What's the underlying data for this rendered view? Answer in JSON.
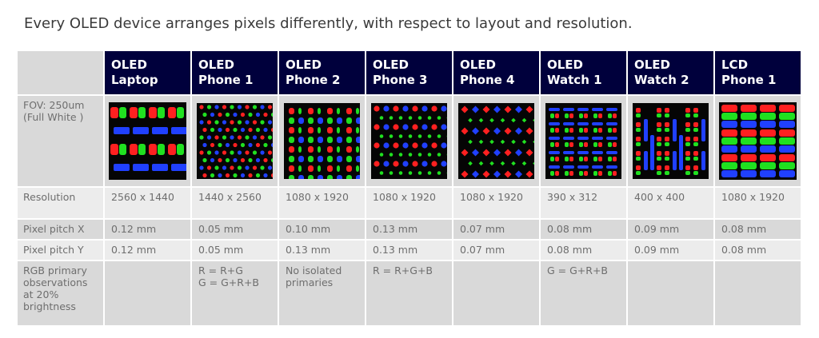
{
  "title": "Every OLED device arranges pixels differently, with respect to layout and resolution.",
  "devices": [
    {
      "line1": "OLED",
      "line2": "Laptop"
    },
    {
      "line1": "OLED",
      "line2": "Phone 1"
    },
    {
      "line1": "OLED",
      "line2": "Phone 2"
    },
    {
      "line1": "OLED",
      "line2": "Phone 3"
    },
    {
      "line1": "OLED",
      "line2": "Phone 4"
    },
    {
      "line1": "OLED",
      "line2": "Watch 1"
    },
    {
      "line1": "OLED",
      "line2": "Watch 2"
    },
    {
      "line1": "LCD",
      "line2": "Phone 1"
    }
  ],
  "rows": {
    "fov": {
      "label_line1": "FOV: 250um",
      "label_line2": "(Full White )"
    },
    "resolution": {
      "label": "Resolution",
      "values": [
        "2560 x 1440",
        "1440 x 2560",
        "1080 x 1920",
        "1080 x 1920",
        "1080 x 1920",
        "390 x 312",
        "400 x 400",
        "1080 x 1920"
      ]
    },
    "pitch_x": {
      "label": "Pixel pitch X",
      "values": [
        "0.12 mm",
        "0.05 mm",
        "0.10 mm",
        "0.13 mm",
        "0.07 mm",
        "0.08 mm",
        "0.09 mm",
        "0.08 mm"
      ]
    },
    "pitch_y": {
      "label": "Pixel pitch Y",
      "values": [
        "0.12 mm",
        "0.05 mm",
        "0.13 mm",
        "0.13 mm",
        "0.07 mm",
        "0.08 mm",
        "0.09 mm",
        "0.08 mm"
      ]
    },
    "rgb": {
      "label_lines": [
        "RGB primary",
        "observations",
        "at 20%",
        "brightness"
      ],
      "values": [
        [],
        [
          "R = R+G",
          "G = G+R+B"
        ],
        [
          "No isolated",
          "primaries"
        ],
        [
          "R = R+G+B"
        ],
        [],
        [
          "G = G+R+B"
        ],
        [],
        []
      ]
    }
  },
  "colors": {
    "header_bg": "#00003c",
    "row_dark": "#d9d9d9",
    "row_light": "#ececec",
    "subpixel_red": "#ff2020",
    "subpixel_green": "#20e020",
    "subpixel_blue": "#2040ff"
  }
}
